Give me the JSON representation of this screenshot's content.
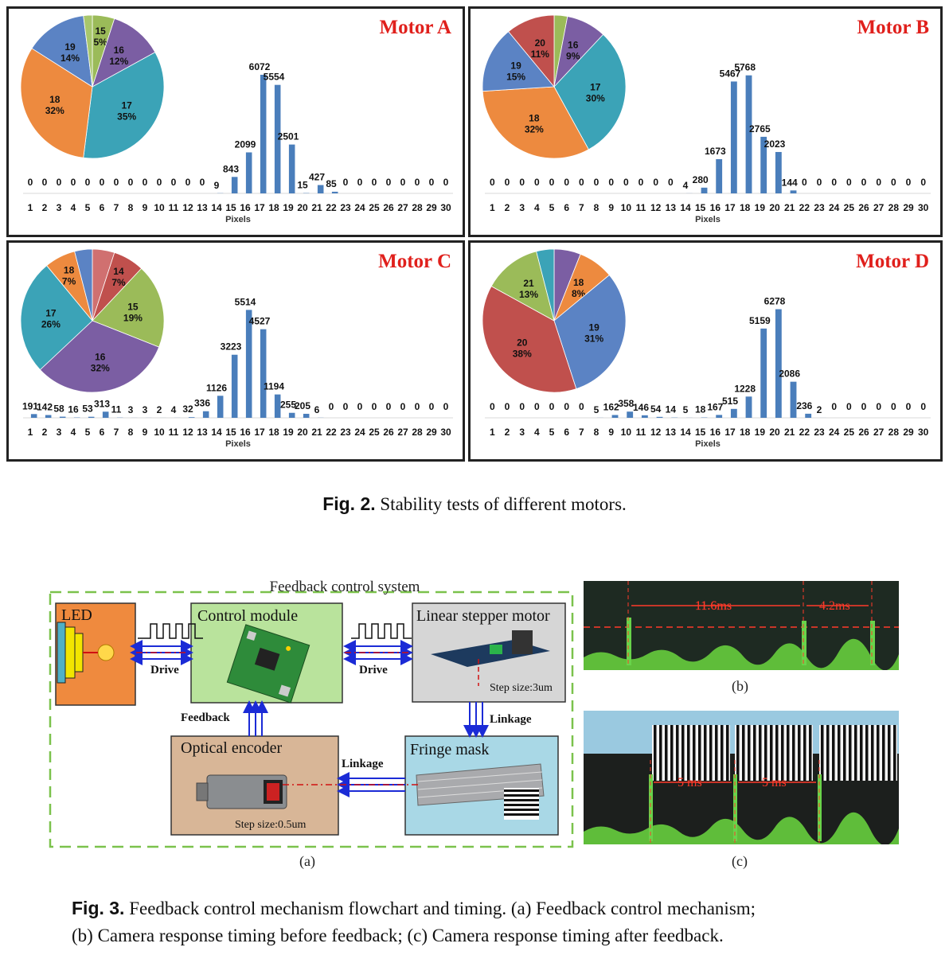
{
  "fig2": {
    "caption_label": "Fig. 2.",
    "caption_text": "Stability tests of different motors.",
    "axis_xlabel": "Pixels"
  },
  "chart_data": [
    {
      "type": "bar",
      "title": "Motor A",
      "xlabel": "Pixels",
      "categories": [
        1,
        2,
        3,
        4,
        5,
        6,
        7,
        8,
        9,
        10,
        11,
        12,
        13,
        14,
        15,
        16,
        17,
        18,
        19,
        20,
        21,
        22,
        23,
        24,
        25,
        26,
        27,
        28,
        29,
        30
      ],
      "values": [
        0,
        0,
        0,
        0,
        0,
        0,
        0,
        0,
        0,
        0,
        0,
        0,
        0,
        9,
        843,
        2099,
        6072,
        5554,
        2501,
        15,
        427,
        85,
        0,
        0,
        0,
        0,
        0,
        0,
        0,
        0
      ],
      "ylim": [
        0,
        6600
      ],
      "bar_color": "#4a7ebb",
      "pie": [
        {
          "label": "15",
          "pct": "5%",
          "value": 5,
          "color": "#9bbb59"
        },
        {
          "label": "16",
          "pct": "12%",
          "value": 12,
          "color": "#7b5ea3"
        },
        {
          "label": "17",
          "pct": "35%",
          "value": 35,
          "color": "#3ba3b7"
        },
        {
          "label": "18",
          "pct": "32%",
          "value": 32,
          "color": "#ed8a3f"
        },
        {
          "label": "19",
          "pct": "14%",
          "value": 14,
          "color": "#5b83c4"
        },
        {
          "label": "",
          "pct": "",
          "value": 2,
          "color": "#a8c66c"
        }
      ]
    },
    {
      "type": "bar",
      "title": "Motor B",
      "xlabel": "Pixels",
      "categories": [
        1,
        2,
        3,
        4,
        5,
        6,
        7,
        8,
        9,
        10,
        11,
        12,
        13,
        14,
        15,
        16,
        17,
        18,
        19,
        20,
        21,
        22,
        23,
        24,
        25,
        26,
        27,
        28,
        29,
        30
      ],
      "values": [
        0,
        0,
        0,
        0,
        0,
        0,
        0,
        0,
        0,
        0,
        0,
        0,
        0,
        4,
        280,
        1673,
        5467,
        5768,
        2765,
        2023,
        144,
        0,
        0,
        0,
        0,
        0,
        0,
        0,
        0,
        0
      ],
      "ylim": [
        0,
        6300
      ],
      "bar_color": "#4a7ebb",
      "pie": [
        {
          "label": "",
          "pct": "",
          "value": 3,
          "color": "#9bbb59"
        },
        {
          "label": "16",
          "pct": "9%",
          "value": 9,
          "color": "#7b5ea3"
        },
        {
          "label": "17",
          "pct": "30%",
          "value": 30,
          "color": "#3ba3b7"
        },
        {
          "label": "18",
          "pct": "32%",
          "value": 32,
          "color": "#ed8a3f"
        },
        {
          "label": "19",
          "pct": "15%",
          "value": 15,
          "color": "#5b83c4"
        },
        {
          "label": "20",
          "pct": "11%",
          "value": 11,
          "color": "#c0504d"
        }
      ]
    },
    {
      "type": "bar",
      "title": "Motor C",
      "xlabel": "Pixels",
      "categories": [
        1,
        2,
        3,
        4,
        5,
        6,
        7,
        8,
        9,
        10,
        11,
        12,
        13,
        14,
        15,
        16,
        17,
        18,
        19,
        20,
        21,
        22,
        23,
        24,
        25,
        26,
        27,
        28,
        29,
        30
      ],
      "values": [
        191,
        142,
        58,
        16,
        53,
        313,
        11,
        3,
        3,
        2,
        4,
        32,
        336,
        1126,
        3223,
        5514,
        4527,
        1194,
        255,
        205,
        6,
        0,
        0,
        0,
        0,
        0,
        0,
        0,
        0,
        0
      ],
      "ylim": [
        0,
        6100
      ],
      "bar_color": "#4a7ebb",
      "pie": [
        {
          "label": "",
          "pct": "",
          "value": 5,
          "color": "#d07070"
        },
        {
          "label": "14",
          "pct": "7%",
          "value": 7,
          "color": "#c0504d"
        },
        {
          "label": "15",
          "pct": "19%",
          "value": 19,
          "color": "#9bbb59"
        },
        {
          "label": "16",
          "pct": "32%",
          "value": 32,
          "color": "#7b5ea3"
        },
        {
          "label": "17",
          "pct": "26%",
          "value": 26,
          "color": "#3ba3b7"
        },
        {
          "label": "18",
          "pct": "7%",
          "value": 7,
          "color": "#ed8a3f"
        },
        {
          "label": "",
          "pct": "",
          "value": 4,
          "color": "#5b83c4"
        }
      ]
    },
    {
      "type": "bar",
      "title": "Motor D",
      "xlabel": "Pixels",
      "categories": [
        1,
        2,
        3,
        4,
        5,
        6,
        7,
        8,
        9,
        10,
        11,
        12,
        13,
        14,
        15,
        16,
        17,
        18,
        19,
        20,
        21,
        22,
        23,
        24,
        25,
        26,
        27,
        28,
        29,
        30
      ],
      "values": [
        0,
        0,
        0,
        0,
        0,
        0,
        0,
        5,
        162,
        358,
        146,
        54,
        14,
        5,
        18,
        167,
        515,
        1228,
        5159,
        6278,
        2086,
        236,
        2,
        0,
        0,
        0,
        0,
        0,
        0,
        0
      ],
      "ylim": [
        0,
        6900
      ],
      "bar_color": "#4a7ebb",
      "pie": [
        {
          "label": "",
          "pct": "",
          "value": 6,
          "color": "#7b5ea3"
        },
        {
          "label": "18",
          "pct": "8%",
          "value": 8,
          "color": "#ed8a3f"
        },
        {
          "label": "19",
          "pct": "31%",
          "value": 31,
          "color": "#5b83c4"
        },
        {
          "label": "20",
          "pct": "38%",
          "value": 38,
          "color": "#c0504d"
        },
        {
          "label": "21",
          "pct": "13%",
          "value": 13,
          "color": "#9bbb59"
        },
        {
          "label": "",
          "pct": "",
          "value": 4,
          "color": "#3ba3b7"
        }
      ]
    }
  ],
  "fig3": {
    "system_title": "Feedback control system",
    "blocks": {
      "led": "LED",
      "control": "Control module",
      "motor": "Linear stepper motor",
      "encoder": "Optical encoder",
      "fringe": "Fringe mask"
    },
    "labels": {
      "drive1": "Drive",
      "drive2": "Drive",
      "feedback": "Feedback",
      "linkage1": "Linkage",
      "linkage2": "Linkage",
      "step_motor": "Step size:3um",
      "step_encoder": "Step size:0.5um"
    },
    "timing_b": {
      "t1": "11.6ms",
      "t2": "4.2ms"
    },
    "timing_c": {
      "t1": "5 ms",
      "t2": "5 ms"
    },
    "sub_a": "(a)",
    "sub_b": "(b)",
    "sub_c": "(c)",
    "caption_label": "Fig. 3.",
    "caption_line1": "Feedback control mechanism flowchart and timing.  (a) Feedback control mechanism;",
    "caption_line2": "(b) Camera response timing before feedback; (c) Camera response timing after feedback."
  }
}
